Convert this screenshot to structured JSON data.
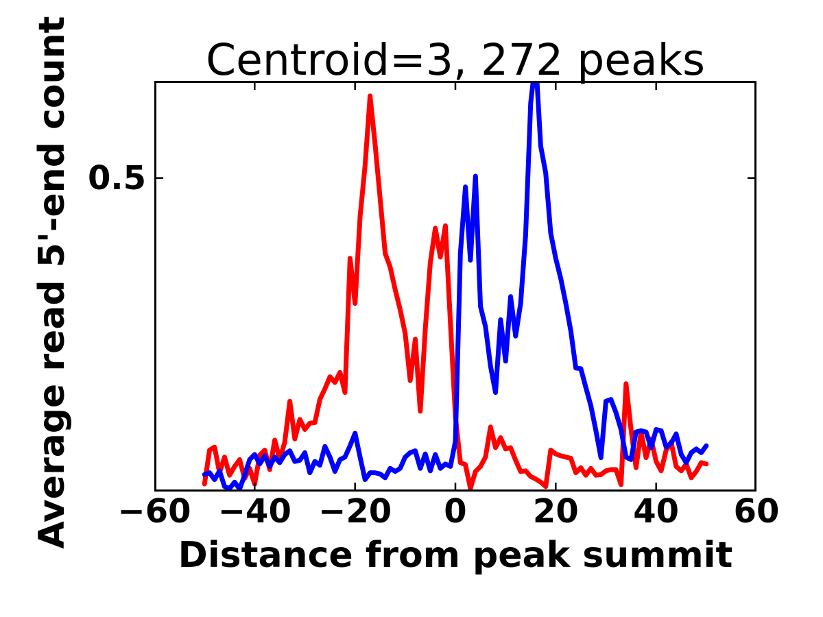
{
  "title": "Centroid=3, 272 peaks",
  "colors": {
    "background": "#ffffff",
    "axis": "#000000",
    "series_red": "#ff0000",
    "series_blue": "#0000ff"
  },
  "chart_data": {
    "type": "line",
    "title": "Centroid=3, 272 peaks",
    "xlabel": "Distance from peak summit",
    "ylabel": "Average read 5'-end count",
    "xlim": [
      -60,
      60
    ],
    "ylim": [
      0,
      0.655
    ],
    "grid": false,
    "legend": null,
    "x_ticks": [
      {
        "value": -60,
        "label": "−60"
      },
      {
        "value": -40,
        "label": "−40"
      },
      {
        "value": -20,
        "label": "−20"
      },
      {
        "value": 0,
        "label": "0"
      },
      {
        "value": 20,
        "label": "20"
      },
      {
        "value": 40,
        "label": "40"
      },
      {
        "value": 60,
        "label": "60"
      }
    ],
    "y_ticks": [
      {
        "value": 0.5,
        "label": "0.5"
      }
    ],
    "y_tick_labels": [
      "0.5"
    ],
    "x": [
      -50,
      -49,
      -48,
      -47,
      -46,
      -45,
      -44,
      -43,
      -42,
      -41,
      -40,
      -39,
      -38,
      -37,
      -36,
      -35,
      -34,
      -33,
      -32,
      -31,
      -30,
      -29,
      -28,
      -27,
      -26,
      -25,
      -24,
      -23,
      -22,
      -21,
      -20,
      -19,
      -18,
      -17,
      -16,
      -15,
      -14,
      -13,
      -12,
      -11,
      -10,
      -9,
      -8,
      -7,
      -6,
      -5,
      -4,
      -3,
      -2,
      -1,
      0,
      1,
      2,
      3,
      4,
      5,
      6,
      7,
      8,
      9,
      10,
      11,
      12,
      13,
      14,
      15,
      16,
      17,
      18,
      19,
      20,
      21,
      22,
      23,
      24,
      25,
      26,
      27,
      28,
      29,
      30,
      31,
      32,
      33,
      34,
      35,
      36,
      37,
      38,
      39,
      40,
      41,
      42,
      43,
      44,
      45,
      46,
      47,
      48,
      49,
      50
    ],
    "series": [
      {
        "name": "red",
        "color": "#ff0000",
        "values": [
          0.012,
          0.066,
          0.071,
          0.03,
          0.055,
          0.026,
          0.04,
          0.051,
          0.021,
          0.037,
          0.012,
          0.058,
          0.066,
          0.035,
          0.082,
          0.051,
          0.079,
          0.144,
          0.084,
          0.115,
          0.099,
          0.109,
          0.11,
          0.147,
          0.164,
          0.183,
          0.174,
          0.19,
          0.158,
          0.372,
          0.3,
          0.438,
          0.52,
          0.631,
          0.554,
          0.467,
          0.38,
          0.358,
          0.322,
          0.29,
          0.252,
          0.177,
          0.243,
          0.128,
          0.259,
          0.365,
          0.42,
          0.374,
          0.424,
          0.27,
          0.12,
          0.046,
          0.043,
          0.005,
          0.032,
          0.04,
          0.055,
          0.103,
          0.07,
          0.086,
          0.068,
          0.07,
          0.05,
          0.032,
          0.033,
          0.024,
          0.02,
          0.015,
          0.008,
          0.066,
          0.06,
          0.057,
          0.055,
          0.053,
          0.03,
          0.038,
          0.026,
          0.037,
          0.026,
          0.027,
          0.033,
          0.035,
          0.035,
          0.011,
          0.172,
          0.099,
          0.038,
          0.095,
          0.054,
          0.084,
          0.048,
          0.033,
          0.066,
          0.079,
          0.04,
          0.033,
          0.044,
          0.022,
          0.032,
          0.046,
          0.044
        ]
      },
      {
        "name": "blue",
        "color": "#0000ff",
        "values": [
          0.027,
          0.03,
          0.019,
          0.033,
          0.008,
          0.005,
          0.015,
          0.004,
          0.026,
          0.051,
          0.059,
          0.044,
          0.057,
          0.04,
          0.055,
          0.046,
          0.059,
          0.065,
          0.048,
          0.05,
          0.062,
          0.03,
          0.048,
          0.042,
          0.072,
          0.055,
          0.032,
          0.051,
          0.055,
          0.073,
          0.093,
          0.055,
          0.019,
          0.03,
          0.03,
          0.028,
          0.022,
          0.037,
          0.032,
          0.037,
          0.055,
          0.062,
          0.065,
          0.037,
          0.06,
          0.033,
          0.059,
          0.037,
          0.044,
          0.04,
          0.08,
          0.38,
          0.486,
          0.369,
          0.503,
          0.295,
          0.263,
          0.2,
          0.158,
          0.274,
          0.208,
          0.311,
          0.248,
          0.3,
          0.409,
          0.62,
          0.69,
          0.551,
          0.508,
          0.412,
          0.372,
          0.34,
          0.3,
          0.256,
          0.197,
          0.196,
          0.166,
          0.137,
          0.097,
          0.054,
          0.144,
          0.147,
          0.126,
          0.099,
          0.055,
          0.051,
          0.095,
          0.097,
          0.095,
          0.07,
          0.099,
          0.097,
          0.071,
          0.077,
          0.092,
          0.059,
          0.046,
          0.062,
          0.068,
          0.062,
          0.073
        ]
      }
    ]
  }
}
